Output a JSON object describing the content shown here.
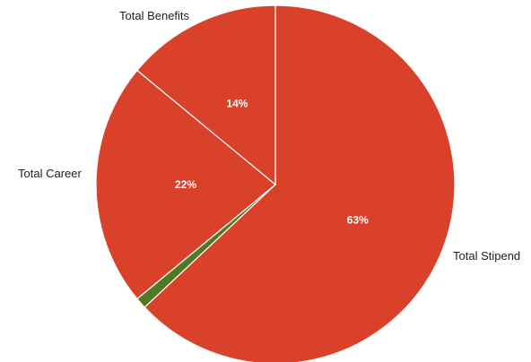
{
  "chart_data": {
    "type": "pie",
    "slices": [
      {
        "label": "Total Stipend",
        "value": 63,
        "value_label": "63%",
        "color": "#d9412a"
      },
      {
        "label": "",
        "value": 1,
        "value_label": "",
        "color": "#4f7a23"
      },
      {
        "label": "Total Career",
        "value": 22,
        "value_label": "22%",
        "color": "#d9412a"
      },
      {
        "label": "Total Benefits",
        "value": 14,
        "value_label": "14%",
        "color": "#d9412a"
      }
    ],
    "start_angle": "12 o'clock",
    "direction": "clockwise",
    "separator_color": "#ffffff",
    "legend": "none"
  }
}
